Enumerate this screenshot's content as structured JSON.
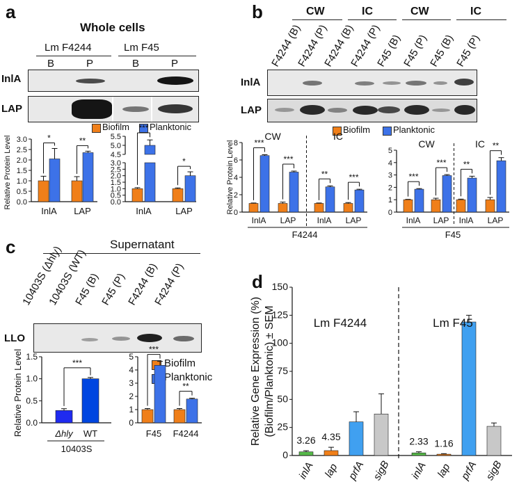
{
  "panels": {
    "a": "a",
    "b": "b",
    "c": "c",
    "d": "d"
  },
  "colors": {
    "biofilm": "#F07F19",
    "planktonic": "#3D72E8",
    "wt": "#0046E0",
    "hly": "#1F2BF0",
    "inlA": "#55B848",
    "lap": "#F07F19",
    "prfA": "#40A0F0",
    "sigB": "#C8C8C8"
  },
  "panel_a": {
    "title": "Whole cells",
    "strains": [
      "Lm F4244",
      "Lm F45"
    ],
    "lanes": [
      "B",
      "P",
      "B",
      "P"
    ],
    "blot_rows": [
      "InlA",
      "LAP"
    ],
    "legend": [
      "Biofilm",
      "Planktonic"
    ],
    "ylabel": "Relative Protein Level"
  },
  "panel_b": {
    "groups": [
      "CW",
      "IC",
      "CW",
      "IC"
    ],
    "lanes": [
      "F4244 (B)",
      "F4244 (P)",
      "F4244 (B)",
      "F4244 (P)",
      "F45 (B)",
      "F45 (P)",
      "F45 (B)",
      "F45 (P)"
    ],
    "blot_rows": [
      "InlA",
      "LAP"
    ],
    "legend": [
      "Biofilm",
      "Planktonic"
    ],
    "ylabel": "Relative Protein Level",
    "strain_labels": [
      "F4244",
      "F45"
    ]
  },
  "panel_c": {
    "header": "Supernatant",
    "lanes": [
      "10403S (Δhly)",
      "10403S (WT)",
      "F45 (B)",
      "F45 (P)",
      "F4244 (B)",
      "F4244 (P)"
    ],
    "blot_row": "LLO",
    "legend": [
      "Biofilm",
      "Planktonic"
    ],
    "ylabel": "Relative Protein Level",
    "strain": "10403S"
  },
  "panel_d": {
    "ylabel_line1": "Relative Gene Expression (%)",
    "ylabel_line2": "(Biofilm/Planktonic) ± SEM",
    "strains": [
      "Lm F4244",
      "Lm F45"
    ]
  },
  "chart_data": [
    {
      "id": "a-left",
      "type": "bar",
      "title": "",
      "categories": [
        "InlA",
        "LAP"
      ],
      "series": [
        {
          "name": "Biofilm",
          "values": [
            1.0,
            1.0
          ],
          "err": [
            0.22,
            0.2
          ]
        },
        {
          "name": "Planktonic",
          "values": [
            2.05,
            2.35
          ],
          "err": [
            0.5,
            0.07
          ]
        }
      ],
      "ylim": [
        0,
        3.0
      ],
      "yticks": [
        "0.0",
        "0.5",
        "1.0",
        "1.5",
        "2.0",
        "2.5",
        "3.0"
      ],
      "sig": [
        "*",
        "**"
      ]
    },
    {
      "id": "a-right",
      "type": "bar",
      "title": "",
      "categories": [
        "InlA",
        "LAP"
      ],
      "series": [
        {
          "name": "Biofilm",
          "values": [
            1.0,
            1.0
          ],
          "err": [
            0.08,
            0.06
          ]
        },
        {
          "name": "Planktonic",
          "values": [
            5.0,
            2.0
          ],
          "err": [
            0.3,
            0.3
          ]
        }
      ],
      "ylim": [
        0,
        5.5
      ],
      "yticks": [
        "0.0",
        "0.5",
        "1.0",
        "1.5",
        "2.0",
        "2.5",
        "3.0",
        "4.5",
        "5.0",
        "5.5"
      ],
      "axis_break": [
        3.0,
        4.5
      ],
      "sig": [
        "***",
        "*"
      ]
    },
    {
      "id": "b-F4244",
      "type": "bar",
      "title": "F4244",
      "groups": [
        "CW",
        "IC"
      ],
      "categories": [
        "InlA",
        "LAP",
        "InlA",
        "LAP"
      ],
      "series": [
        {
          "name": "Biofilm",
          "values": [
            1.0,
            1.0,
            1.0,
            1.0
          ],
          "err": [
            0.05,
            0.15,
            0.05,
            0.1
          ]
        },
        {
          "name": "Planktonic",
          "values": [
            6.5,
            4.6,
            2.9,
            2.55
          ],
          "err": [
            0.1,
            0.12,
            0.12,
            0.08
          ]
        }
      ],
      "ylim": [
        0,
        8
      ],
      "yticks": [
        "0",
        "2",
        "4",
        "6",
        "8"
      ],
      "sig": [
        "***",
        "***",
        "**",
        "***"
      ]
    },
    {
      "id": "b-F45",
      "type": "bar",
      "title": "F45",
      "groups": [
        "CW",
        "IC"
      ],
      "categories": [
        "InlA",
        "LAP",
        "InlA",
        "LAP"
      ],
      "series": [
        {
          "name": "Biofilm",
          "values": [
            1.0,
            1.0,
            1.0,
            1.0
          ],
          "err": [
            0.03,
            0.12,
            0.05,
            0.18
          ]
        },
        {
          "name": "Planktonic",
          "values": [
            1.85,
            2.95,
            2.75,
            4.15
          ],
          "err": [
            0.05,
            0.08,
            0.15,
            0.25
          ]
        }
      ],
      "ylim": [
        0,
        5
      ],
      "yticks": [
        "0",
        "1",
        "2",
        "3",
        "4",
        "5"
      ],
      "sig": [
        "***",
        "***",
        "**",
        "**"
      ]
    },
    {
      "id": "c-left",
      "type": "bar",
      "title": "",
      "categories": [
        "Δhly",
        "WT"
      ],
      "values": [
        0.28,
        1.0
      ],
      "err": [
        0.04,
        0.03
      ],
      "ylim": [
        0,
        1.5
      ],
      "yticks": [
        "0.0",
        "0.5",
        "1.0",
        "1.5"
      ],
      "sig": [
        "***"
      ]
    },
    {
      "id": "c-right",
      "type": "bar",
      "title": "",
      "categories": [
        "F45",
        "F4244"
      ],
      "series": [
        {
          "name": "Biofilm",
          "values": [
            1.0,
            1.0
          ],
          "err": [
            0.08,
            0.08
          ]
        },
        {
          "name": "Planktonic",
          "values": [
            4.35,
            1.8
          ],
          "err": [
            0.3,
            0.06
          ]
        }
      ],
      "ylim": [
        0,
        5
      ],
      "yticks": [
        "0",
        "1",
        "2",
        "3",
        "4",
        "5"
      ],
      "sig": [
        "***",
        "**"
      ]
    },
    {
      "id": "d",
      "type": "bar",
      "title": "",
      "categories": [
        "inlA",
        "lap",
        "prfA",
        "sigB",
        "inlA",
        "lap",
        "prfA",
        "sigB"
      ],
      "values": [
        3.26,
        4.35,
        30,
        37,
        2.33,
        1.16,
        119,
        26
      ],
      "err": [
        1,
        3,
        9,
        18,
        1,
        0.5,
        6,
        3
      ],
      "labels": [
        "3.26",
        "4.35",
        "",
        "",
        "2.33",
        "1.16",
        "",
        ""
      ],
      "ylim": [
        0,
        150
      ],
      "yticks": [
        "0",
        "25",
        "50",
        "75",
        "100",
        "125",
        "150"
      ]
    }
  ]
}
